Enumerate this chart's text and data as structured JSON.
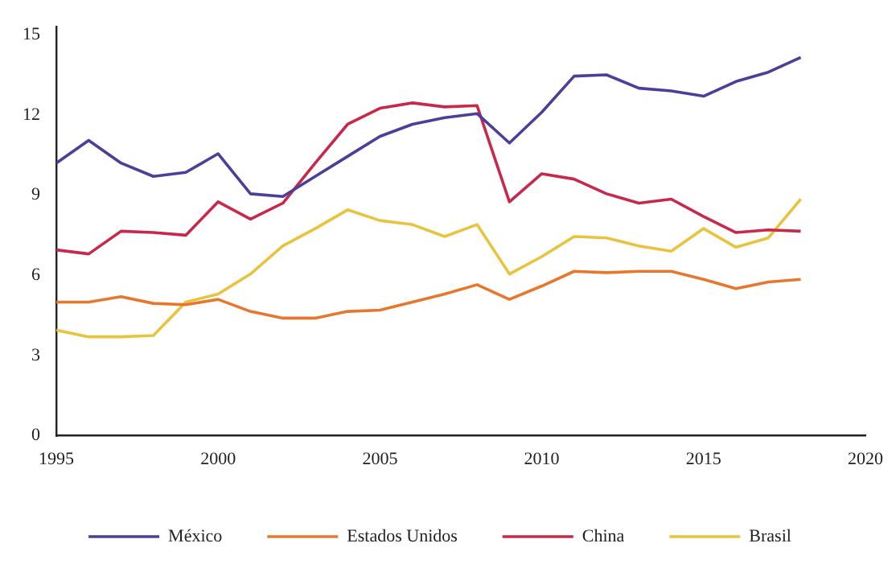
{
  "chart_data": {
    "type": "line",
    "x": [
      1995,
      1996,
      1997,
      1998,
      1999,
      2000,
      2001,
      2002,
      2003,
      2004,
      2005,
      2006,
      2007,
      2008,
      2009,
      2010,
      2011,
      2012,
      2013,
      2014,
      2015,
      2016,
      2017,
      2018
    ],
    "xlim": [
      1995,
      2020
    ],
    "xticks": [
      1995,
      2000,
      2005,
      2010,
      2015,
      2020
    ],
    "ylim": [
      0,
      15.3
    ],
    "yticks": [
      0,
      3,
      6,
      9,
      12,
      15
    ],
    "grid": false,
    "legend": "bottom",
    "marker": "none",
    "line_style": "solid",
    "series": [
      {
        "name": "México",
        "color": "#4b3f9a",
        "values": [
          10.2,
          11.05,
          10.2,
          9.7,
          9.85,
          10.55,
          9.05,
          8.95,
          9.7,
          10.45,
          11.2,
          11.65,
          11.9,
          12.05,
          10.95,
          12.1,
          13.45,
          13.5,
          13.0,
          12.9,
          12.7,
          13.25,
          13.6,
          14.15
        ]
      },
      {
        "name": "Estados Unidos",
        "color": "#e8772e",
        "values": [
          5.0,
          5.0,
          5.2,
          4.95,
          4.9,
          5.1,
          4.65,
          4.4,
          4.4,
          4.65,
          4.7,
          5.0,
          5.3,
          5.65,
          5.1,
          5.6,
          6.15,
          6.1,
          6.15,
          6.15,
          5.85,
          5.5,
          5.75,
          5.85
        ]
      },
      {
        "name": "China",
        "color": "#c8284a",
        "values": [
          6.95,
          6.8,
          7.65,
          7.6,
          7.5,
          8.75,
          8.1,
          8.7,
          10.2,
          11.65,
          12.25,
          12.45,
          12.3,
          12.35,
          8.75,
          9.8,
          9.6,
          9.05,
          8.7,
          8.85,
          8.2,
          7.6,
          7.7,
          7.65
        ]
      },
      {
        "name": "Brasil",
        "color": "#e8c43e",
        "values": [
          3.95,
          3.7,
          3.7,
          3.75,
          5.0,
          5.3,
          6.05,
          7.1,
          7.75,
          8.45,
          8.05,
          7.9,
          7.45,
          7.9,
          6.05,
          6.7,
          7.45,
          7.4,
          7.1,
          6.9,
          7.75,
          7.05,
          7.4,
          8.85
        ]
      }
    ]
  }
}
